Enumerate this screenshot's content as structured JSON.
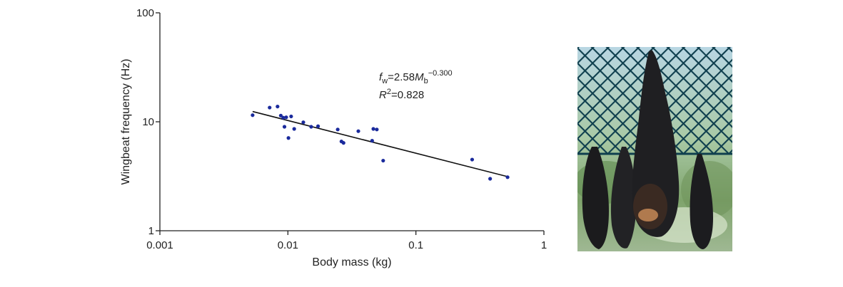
{
  "chart_data": {
    "type": "scatter",
    "title": "",
    "xlabel": "Body mass (kg)",
    "ylabel": "Wingbeat frequency (Hz)",
    "xscale": "log",
    "yscale": "log",
    "xlim": [
      0.001,
      1
    ],
    "ylim": [
      1,
      100
    ],
    "xticks": [
      "0.001",
      "0.01",
      "0.1",
      "1"
    ],
    "yticks": [
      "1",
      "10",
      "100"
    ],
    "grid": false,
    "marker_color": "#1a2a9c",
    "points": [
      {
        "x": 0.0053,
        "y": 11.5
      },
      {
        "x": 0.0072,
        "y": 13.5
      },
      {
        "x": 0.0083,
        "y": 13.8
      },
      {
        "x": 0.0088,
        "y": 11.4
      },
      {
        "x": 0.0092,
        "y": 10.9
      },
      {
        "x": 0.0094,
        "y": 9.0
      },
      {
        "x": 0.0097,
        "y": 11.0
      },
      {
        "x": 0.0101,
        "y": 7.1
      },
      {
        "x": 0.0106,
        "y": 11.2
      },
      {
        "x": 0.0112,
        "y": 8.6
      },
      {
        "x": 0.0132,
        "y": 9.9
      },
      {
        "x": 0.0152,
        "y": 9.0
      },
      {
        "x": 0.0172,
        "y": 9.1
      },
      {
        "x": 0.0245,
        "y": 8.5
      },
      {
        "x": 0.0262,
        "y": 6.6
      },
      {
        "x": 0.0272,
        "y": 6.4
      },
      {
        "x": 0.0355,
        "y": 8.2
      },
      {
        "x": 0.0455,
        "y": 6.7
      },
      {
        "x": 0.0465,
        "y": 8.6
      },
      {
        "x": 0.0495,
        "y": 8.5
      },
      {
        "x": 0.0555,
        "y": 4.4
      },
      {
        "x": 0.275,
        "y": 4.5
      },
      {
        "x": 0.38,
        "y": 3.0
      },
      {
        "x": 0.52,
        "y": 3.1
      }
    ],
    "fit": {
      "a": 2.58,
      "b": -0.3,
      "x_range": [
        0.0053,
        0.52
      ]
    },
    "annotation": {
      "f": "f",
      "w": "w",
      "eq": "=2.58",
      "M": "M",
      "b": "b",
      "exp": "−0.300",
      "R": "R",
      "two": "2",
      "r2": "=0.828"
    }
  },
  "photo": {
    "description_icon": "fruit-bat-photo"
  }
}
